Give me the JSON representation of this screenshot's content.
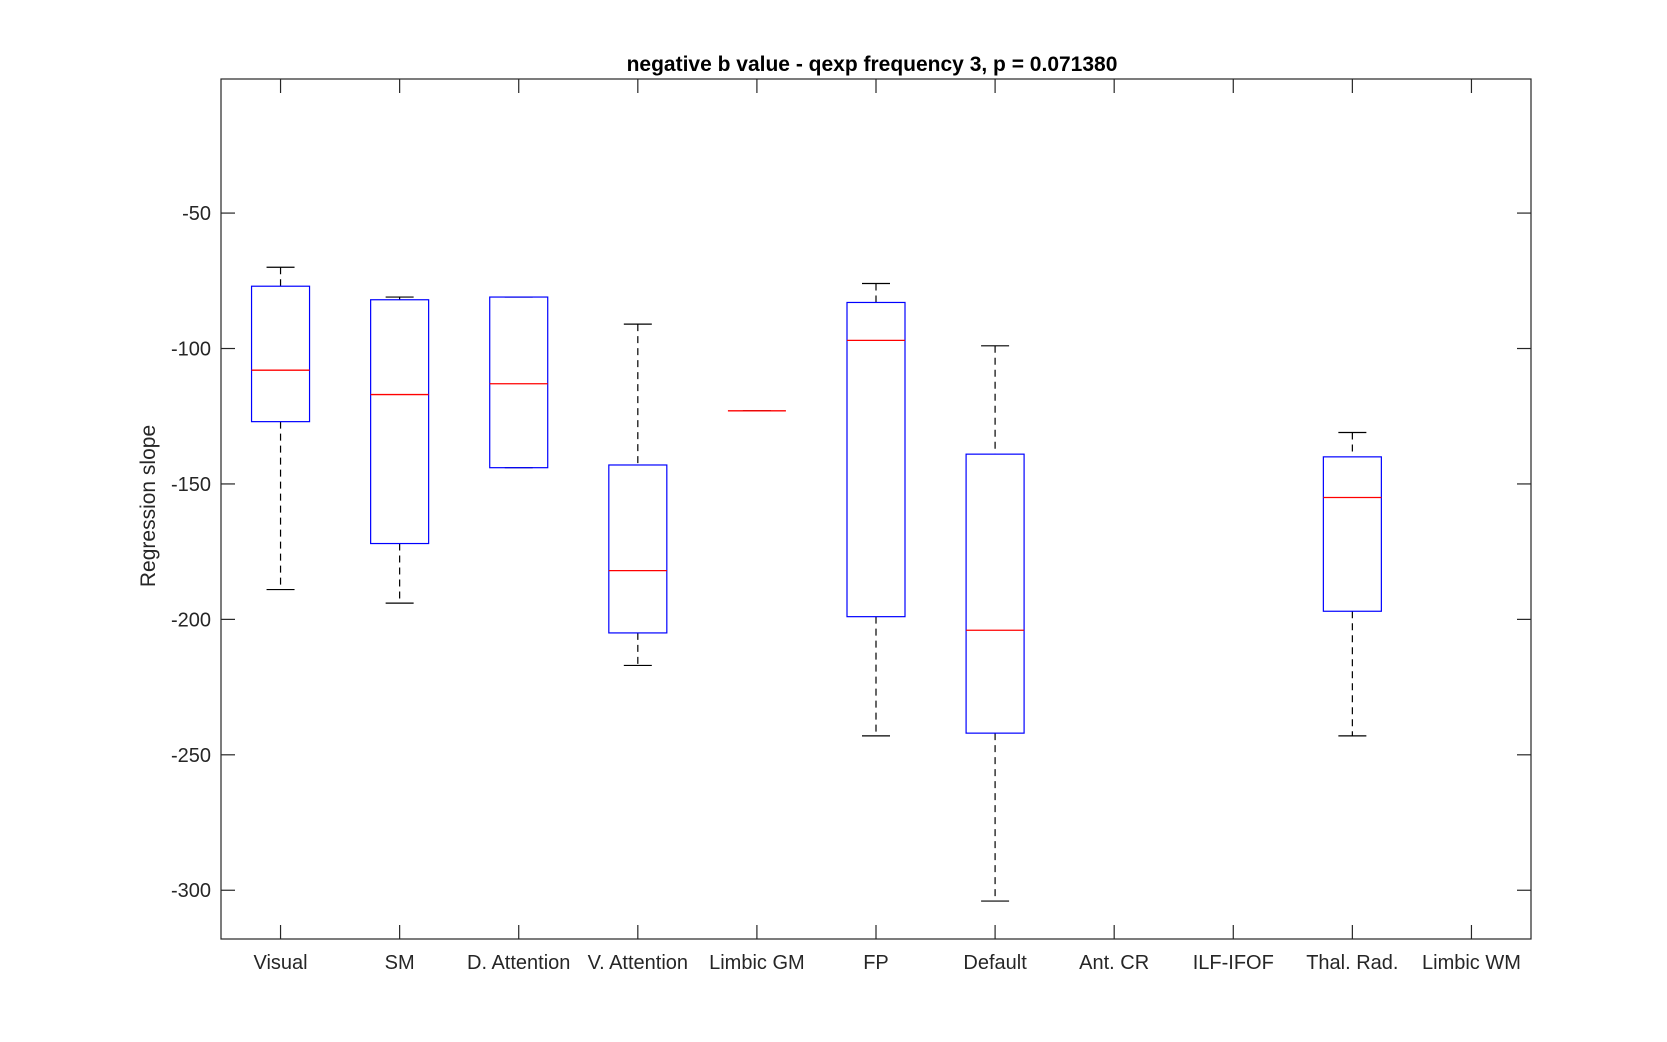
{
  "chart_data": {
    "type": "box",
    "title": "negative b value - qexp frequency 3, p = 0.071380",
    "xlabel": "",
    "ylabel": "Regression slope",
    "ylim": [
      -318,
      -0.5
    ],
    "yticks": [
      -50,
      -100,
      -150,
      -200,
      -250,
      -300
    ],
    "ytick_labels": [
      "-50",
      "-100",
      "-150",
      "-200",
      "-250",
      "-300"
    ],
    "grid": false,
    "categories": [
      "Visual",
      "SM",
      "D. Attention",
      "V. Attention",
      "Limbic GM",
      "FP",
      "Default",
      "Ant. CR",
      "ILF-IFOF",
      "Thal. Rad.",
      "Limbic WM"
    ],
    "boxes": [
      {
        "category": "Visual",
        "whisker_low": -189,
        "q1": -127,
        "median": -108,
        "q3": -77,
        "whisker_high": -70
      },
      {
        "category": "SM",
        "whisker_low": -194,
        "q1": -172,
        "median": -117,
        "q3": -82,
        "whisker_high": -81
      },
      {
        "category": "D. Attention",
        "whisker_low": -144,
        "q1": -144,
        "median": -113,
        "q3": -81,
        "whisker_high": -81
      },
      {
        "category": "V. Attention",
        "whisker_low": -217,
        "q1": -205,
        "median": -182,
        "q3": -143,
        "whisker_high": -91
      },
      {
        "category": "Limbic GM",
        "whisker_low": -123,
        "q1": -123,
        "median": -123,
        "q3": -123,
        "whisker_high": -123
      },
      {
        "category": "FP",
        "whisker_low": -243,
        "q1": -199,
        "median": -97,
        "q3": -83,
        "whisker_high": -76
      },
      {
        "category": "Default",
        "whisker_low": -304,
        "q1": -242,
        "median": -204,
        "q3": -139,
        "whisker_high": -99
      },
      {
        "category": "Ant. CR",
        "empty": true
      },
      {
        "category": "ILF-IFOF",
        "empty": true
      },
      {
        "category": "Thal. Rad.",
        "whisker_low": -243,
        "q1": -197,
        "median": -155,
        "q3": -140,
        "whisker_high": -131
      },
      {
        "category": "Limbic WM",
        "empty": true
      }
    ],
    "colors": {
      "box": "#0000ff",
      "median": "#ff0000",
      "whisker": "#000000",
      "axes": "#262626"
    }
  }
}
